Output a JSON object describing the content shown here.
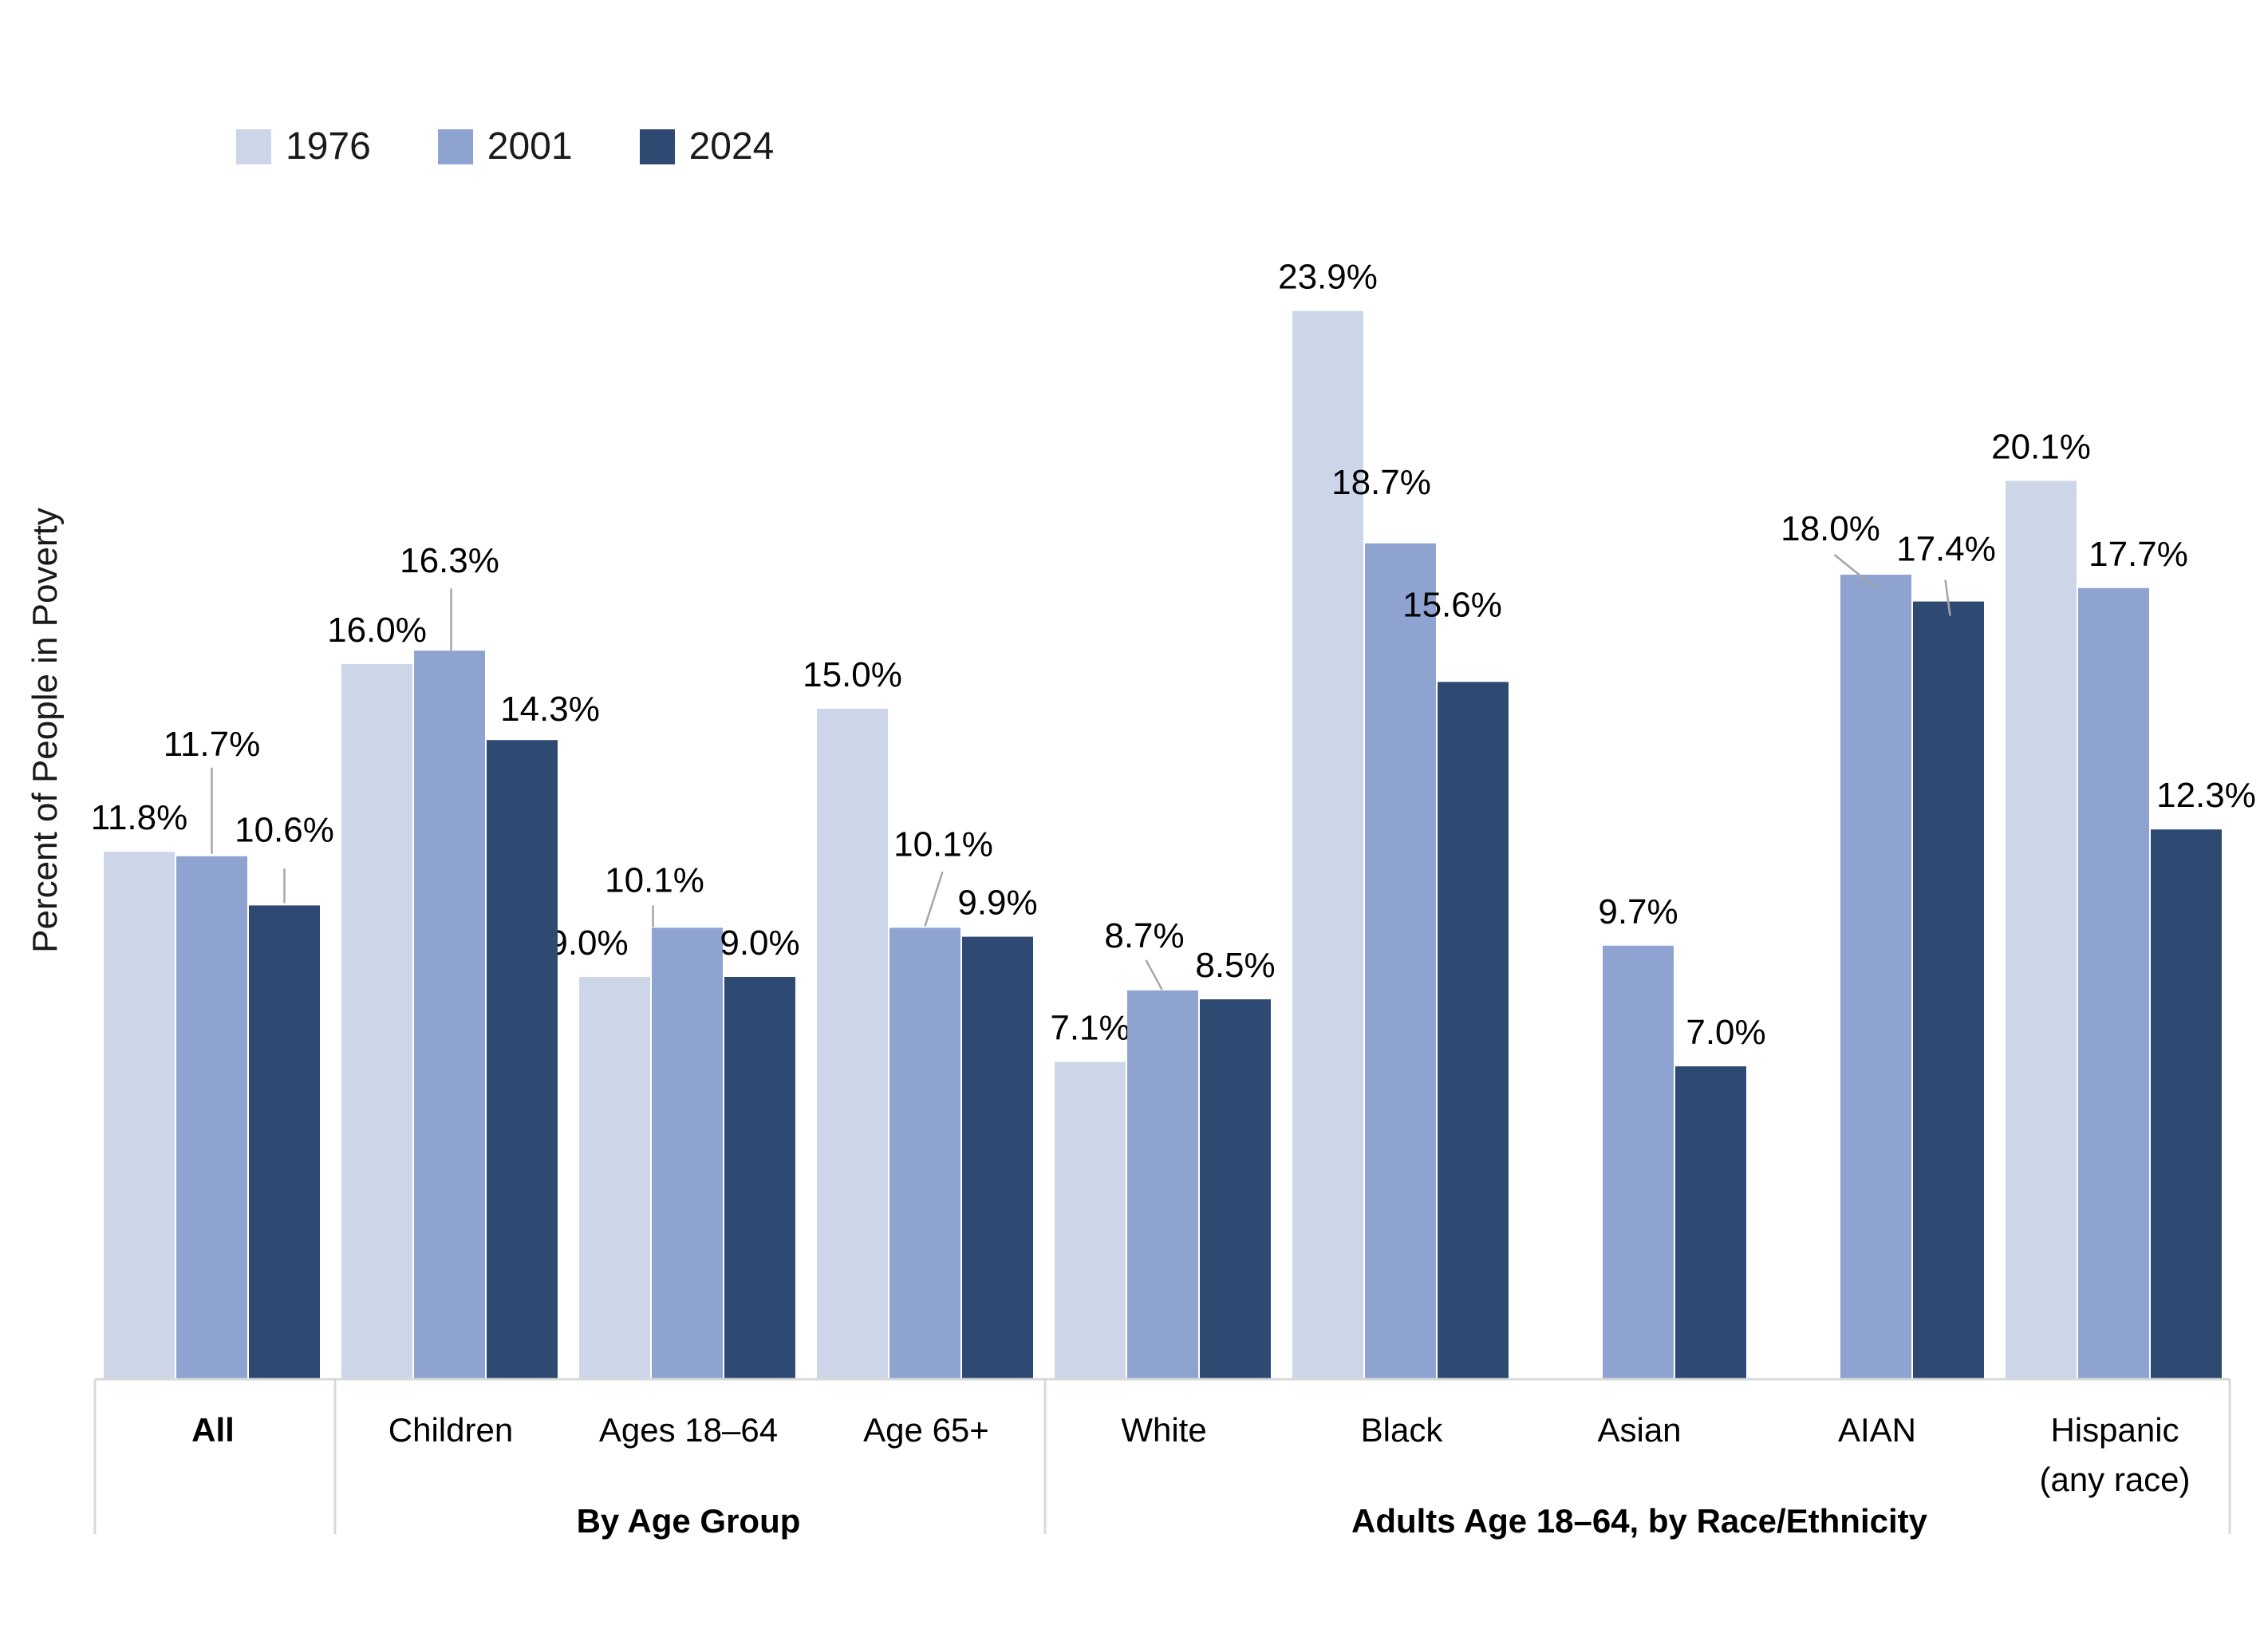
{
  "legend": {
    "items": [
      {
        "label": "1976",
        "color": "#cdd6e8"
      },
      {
        "label": "2001",
        "color": "#8ea3cf"
      },
      {
        "label": "2024",
        "color": "#2e4a72"
      }
    ]
  },
  "chart_data": {
    "type": "bar",
    "title": "",
    "xlabel": "",
    "ylabel": "Percent of People in Poverty",
    "ylim": [
      0,
      26
    ],
    "grid": false,
    "legend_position": "top-left",
    "value_label_format": "one-decimal-percent",
    "categories": [
      "All",
      "Children",
      "Ages 18–64",
      "Age 65+",
      "White",
      "Black",
      "Asian",
      "AIAN",
      "Hispanic\n(any race)"
    ],
    "series": [
      {
        "name": "1976",
        "color": "#cdd6e8",
        "values": [
          11.8,
          16.0,
          9.0,
          15.0,
          7.1,
          23.9,
          null,
          null,
          20.1
        ]
      },
      {
        "name": "2001",
        "color": "#8ea3cf",
        "values": [
          11.7,
          16.3,
          10.1,
          10.1,
          8.7,
          18.7,
          9.7,
          18.0,
          17.7
        ]
      },
      {
        "name": "2024",
        "color": "#2e4a72",
        "values": [
          10.6,
          14.3,
          9.0,
          9.9,
          8.5,
          15.6,
          7.0,
          17.4,
          12.3
        ]
      }
    ],
    "sections": [
      {
        "label": "By Age Group",
        "from": 1,
        "to": 3
      },
      {
        "label": "Adults Age 18–64, by Race/Ethnicity",
        "from": 4,
        "to": 8
      }
    ]
  }
}
